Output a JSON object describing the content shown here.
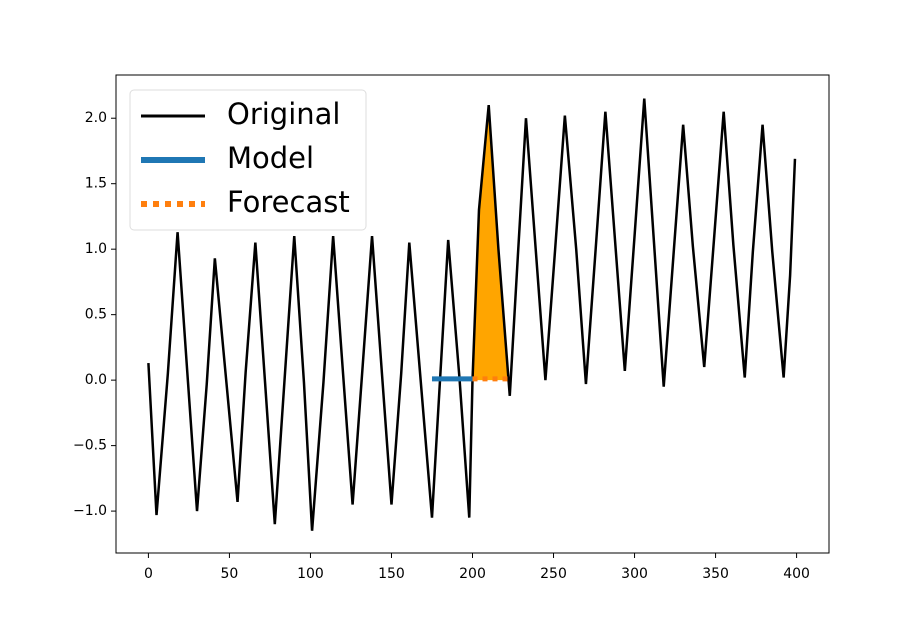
{
  "chart_data": {
    "type": "line",
    "xlim": [
      -20,
      420
    ],
    "ylim": [
      -1.32,
      2.33
    ],
    "xticks": [
      0,
      50,
      100,
      150,
      200,
      250,
      300,
      350,
      400
    ],
    "yticks": [
      {
        "value": -1,
        "label": "−1.0"
      },
      {
        "value": -0.5,
        "label": "−0.5"
      },
      {
        "value": 0,
        "label": "0.0"
      },
      0.5,
      {
        "value": 1,
        "label": "1.0"
      },
      1.5,
      {
        "value": 2,
        "label": "2.0"
      }
    ],
    "legend": "upper left",
    "series": [
      {
        "name": "Original",
        "color": "#000000",
        "linestyle": "solid",
        "x": [
          0,
          5,
          12,
          18,
          24,
          30,
          36,
          41,
          48,
          55,
          60,
          66,
          72,
          78,
          84,
          90,
          96,
          101,
          108,
          114,
          120,
          126,
          132,
          138,
          144,
          150,
          156,
          161,
          168,
          175,
          180,
          185,
          192,
          198,
          200,
          204,
          210,
          216,
          223,
          228,
          233,
          239,
          245,
          251,
          257,
          264,
          270,
          276,
          282,
          288,
          294,
          300,
          306,
          312,
          318,
          324,
          330,
          336,
          343,
          349,
          355,
          361,
          368,
          373,
          379,
          385,
          392,
          396,
          399
        ],
        "values": [
          0.13,
          -1.03,
          0.05,
          1.13,
          0.06,
          -1.0,
          -0.03,
          0.93,
          0.0,
          -0.93,
          0.06,
          1.05,
          -0.02,
          -1.1,
          0.0,
          1.1,
          -0.02,
          -1.15,
          -0.02,
          1.1,
          0.07,
          -0.95,
          0.07,
          1.1,
          0.07,
          -0.95,
          0.05,
          1.05,
          0.0,
          -1.05,
          0.01,
          1.07,
          0.01,
          -1.05,
          0.0,
          1.3,
          2.1,
          1.0,
          -0.12,
          0.95,
          2.0,
          1.0,
          0.0,
          1.0,
          2.02,
          1.0,
          -0.03,
          1.0,
          2.05,
          1.06,
          0.07,
          1.1,
          2.15,
          1.05,
          -0.05,
          0.95,
          1.95,
          1.02,
          0.1,
          1.07,
          2.05,
          1.03,
          0.02,
          0.98,
          1.95,
          0.98,
          0.02,
          0.8,
          1.69
        ]
      },
      {
        "name": "Model",
        "color": "#1f77b4",
        "linestyle": "solid",
        "x": [
          175,
          200
        ],
        "values": [
          0.01,
          0.01
        ]
      },
      {
        "name": "Forecast",
        "color": "#ff7f0e",
        "linestyle": "dotted",
        "x": [
          200,
          224
        ],
        "values": [
          0.01,
          0.01
        ]
      }
    ],
    "fill_area": {
      "color": "#ffa500",
      "x": [
        200,
        204,
        210,
        216,
        222
      ],
      "values": [
        0,
        1.3,
        2.1,
        1.0,
        0
      ]
    }
  }
}
